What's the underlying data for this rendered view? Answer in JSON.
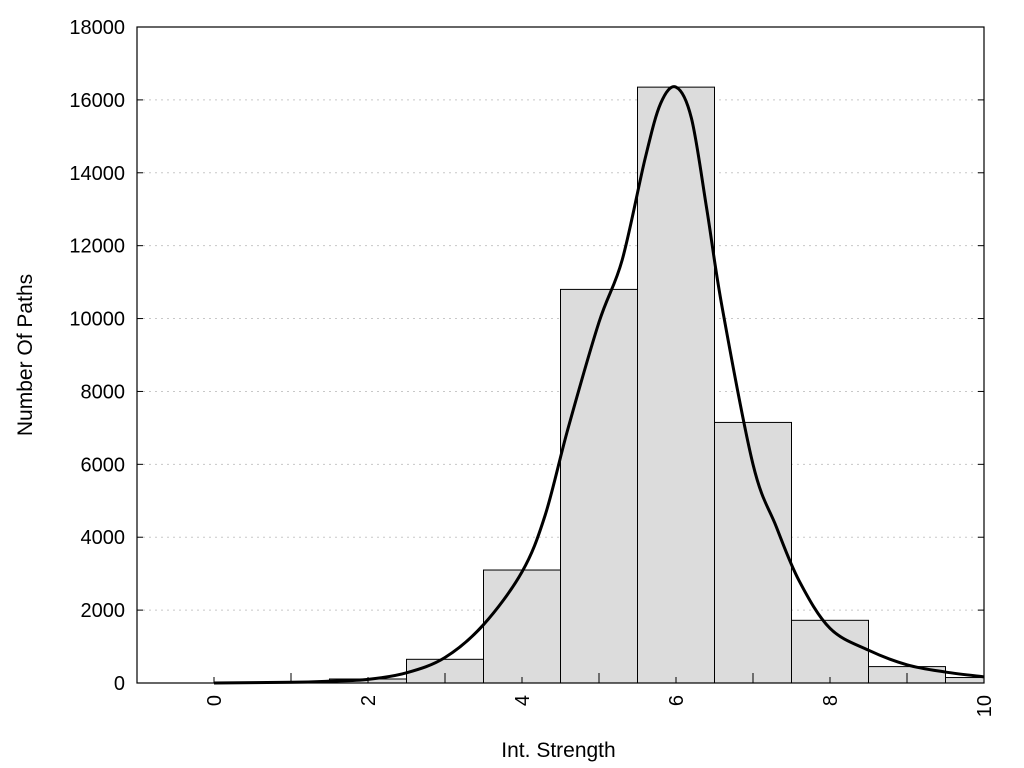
{
  "chart_data": {
    "type": "bar",
    "title": "",
    "xlabel": "Int. Strength",
    "ylabel": "Number Of Paths",
    "xlim": [
      -1,
      10
    ],
    "ylim": [
      0,
      18000
    ],
    "grid": true,
    "x_ticks": [
      0,
      2,
      4,
      6,
      8,
      10
    ],
    "y_ticks": [
      0,
      2000,
      4000,
      6000,
      8000,
      10000,
      12000,
      14000,
      16000,
      18000
    ],
    "bins": [
      {
        "center": 0,
        "value": 0
      },
      {
        "center": 1,
        "value": 5
      },
      {
        "center": 2,
        "value": 110
      },
      {
        "center": 3,
        "value": 650
      },
      {
        "center": 4,
        "value": 3100
      },
      {
        "center": 5,
        "value": 10800
      },
      {
        "center": 6,
        "value": 16350
      },
      {
        "center": 7,
        "value": 7150
      },
      {
        "center": 8,
        "value": 1720
      },
      {
        "center": 9,
        "value": 450
      },
      {
        "center": 10,
        "value": 150
      }
    ],
    "bin_width": 1,
    "fit_curve": {
      "x": [
        0,
        1,
        1.5,
        2,
        2.5,
        3,
        3.5,
        4,
        4.3,
        4.6,
        5,
        5.3,
        5.6,
        5.8,
        6,
        6.2,
        6.4,
        6.6,
        7,
        7.3,
        7.6,
        8,
        8.5,
        9,
        9.5,
        10
      ],
      "y": [
        0,
        20,
        50,
        100,
        280,
        700,
        1600,
        3050,
        4600,
        7000,
        9900,
        11600,
        14400,
        15900,
        16350,
        15500,
        13000,
        10300,
        6000,
        4300,
        2800,
        1500,
        900,
        500,
        300,
        170
      ]
    }
  }
}
